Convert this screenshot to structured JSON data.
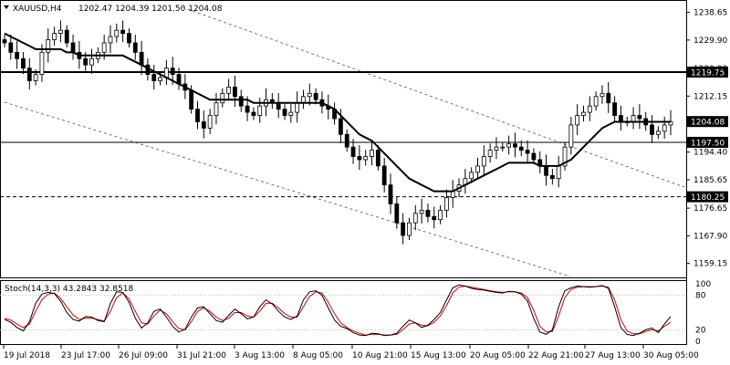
{
  "header": {
    "symbol": "XAUUSD,H4",
    "ohlc": "1202.47 1204.39 1201.50 1204.08"
  },
  "indicator": {
    "label": "Stoch(14,3,3) 43.2843 32.8518",
    "ticks": [
      "100",
      "80",
      "20",
      "0"
    ]
  },
  "chart_data": {
    "type": "candlestick",
    "price_scale": {
      "ylim": [
        1155.0,
        1242.0
      ],
      "ticks": [
        "1238.65",
        "1229.90",
        "1220.90",
        "1212.15",
        "1203.40",
        "1194.40",
        "1185.65",
        "1176.65",
        "1167.90",
        "1159.15"
      ]
    },
    "x_ticks": [
      "19 Jul 2018",
      "23 Jul 17:00",
      "26 Jul 09:00",
      "31 Jul 21:00",
      "3 Aug 13:00",
      "8 Aug 05:00",
      "10 Aug 21:00",
      "15 Aug 13:00",
      "20 Aug 05:00",
      "22 Aug 21:00",
      "27 Aug 13:00",
      "30 Aug 05:00"
    ],
    "levels": [
      {
        "price": 1219.75,
        "label": "1219.75",
        "style": "solid-thick"
      },
      {
        "price": 1197.5,
        "label": "1197.50",
        "style": "solid"
      },
      {
        "price": 1180.25,
        "label": "1180.25",
        "style": "dashed"
      }
    ],
    "current_price": {
      "price": 1204.08,
      "label": "1204.08"
    },
    "closes": [
      1229,
      1226,
      1224,
      1221,
      1217,
      1219,
      1226,
      1230,
      1232,
      1233,
      1229,
      1226,
      1224,
      1222,
      1224,
      1226,
      1229,
      1231,
      1233,
      1232,
      1229,
      1226,
      1222,
      1219,
      1217,
      1218,
      1221,
      1219,
      1216,
      1214,
      1208,
      1204,
      1202,
      1206,
      1210,
      1213,
      1215,
      1212,
      1209,
      1207,
      1206,
      1209,
      1211,
      1210,
      1208,
      1206,
      1207,
      1210,
      1212,
      1213,
      1211,
      1209,
      1208,
      1205,
      1200,
      1196,
      1193,
      1192,
      1193,
      1195,
      1190,
      1184,
      1178,
      1172,
      1168,
      1172,
      1175,
      1176,
      1174,
      1173,
      1176,
      1180,
      1182,
      1184,
      1186,
      1188,
      1190,
      1193,
      1195,
      1196,
      1196,
      1197,
      1196,
      1195,
      1194,
      1192,
      1190,
      1187,
      1186,
      1190,
      1196,
      1203,
      1206,
      1207,
      1209,
      1212,
      1213,
      1210,
      1206,
      1204,
      1204,
      1206,
      1205,
      1203,
      1200,
      1201,
      1203,
      1204.08
    ],
    "highs_lows_note": "",
    "ma": [
      1232,
      1231,
      1230,
      1229,
      1228,
      1227,
      1227,
      1227,
      1227,
      1227,
      1226,
      1226,
      1225,
      1225,
      1225,
      1225,
      1225,
      1225,
      1225,
      1225,
      1224,
      1223,
      1222,
      1221,
      1220,
      1219,
      1218,
      1217,
      1216,
      1215,
      1214,
      1213,
      1212,
      1211,
      1211,
      1211,
      1211,
      1211,
      1211,
      1211,
      1210,
      1210,
      1210,
      1210,
      1210,
      1210,
      1210,
      1210,
      1210,
      1210,
      1210,
      1210,
      1209,
      1208,
      1206,
      1204,
      1202,
      1200,
      1199,
      1198,
      1196,
      1194,
      1192,
      1190,
      1188,
      1186,
      1185,
      1184,
      1183,
      1182,
      1182,
      1182,
      1182,
      1183,
      1184,
      1185,
      1186,
      1187,
      1188,
      1189,
      1190,
      1191,
      1191,
      1191,
      1191,
      1191,
      1190,
      1190,
      1190,
      1190,
      1191,
      1192,
      1194,
      1196,
      1198,
      1200,
      1202,
      1203,
      1204,
      1204,
      1204,
      1204,
      1204,
      1204,
      1204,
      1204,
      1204,
      1204
    ],
    "stoch_k": [
      38,
      33,
      24,
      18,
      34,
      66,
      82,
      85,
      83,
      70,
      50,
      38,
      35,
      43,
      42,
      36,
      34,
      66,
      86,
      85,
      68,
      40,
      23,
      32,
      52,
      56,
      42,
      26,
      16,
      21,
      42,
      58,
      60,
      48,
      36,
      33,
      45,
      56,
      48,
      39,
      42,
      60,
      72,
      65,
      52,
      42,
      38,
      44,
      72,
      86,
      88,
      80,
      58,
      37,
      26,
      22,
      15,
      11,
      10,
      14,
      13,
      10,
      11,
      14,
      26,
      37,
      32,
      24,
      28,
      38,
      50,
      72,
      93,
      98,
      96,
      92,
      90,
      89,
      87,
      85,
      84,
      87,
      86,
      82,
      70,
      40,
      16,
      12,
      20,
      60,
      88,
      93,
      96,
      95,
      94,
      95,
      97,
      92,
      60,
      24,
      12,
      10,
      14,
      20,
      23,
      15,
      30,
      43
    ],
    "stoch_d": [
      40,
      37,
      30,
      24,
      30,
      52,
      72,
      82,
      84,
      75,
      60,
      46,
      38,
      40,
      40,
      38,
      35,
      52,
      76,
      84,
      74,
      52,
      32,
      30,
      44,
      54,
      48,
      34,
      22,
      20,
      34,
      52,
      58,
      52,
      42,
      36,
      40,
      50,
      50,
      44,
      42,
      52,
      66,
      66,
      58,
      48,
      42,
      42,
      60,
      78,
      86,
      84,
      68,
      48,
      32,
      24,
      18,
      14,
      11,
      12,
      12,
      11,
      11,
      12,
      20,
      30,
      32,
      28,
      27,
      33,
      44,
      62,
      84,
      94,
      96,
      94,
      92,
      90,
      88,
      86,
      85,
      86,
      86,
      84,
      76,
      54,
      26,
      16,
      17,
      44,
      76,
      90,
      94,
      95,
      95,
      95,
      96,
      94,
      72,
      38,
      18,
      13,
      13,
      17,
      20,
      18,
      26,
      33
    ]
  }
}
